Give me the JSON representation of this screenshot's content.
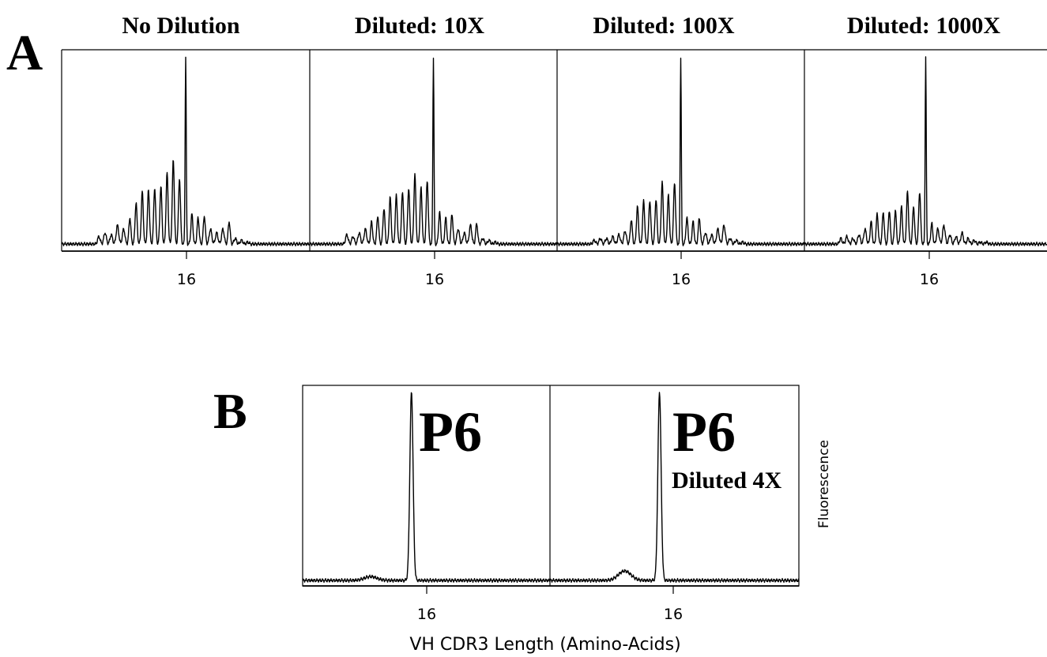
{
  "figure": {
    "panel_a_letter": "A",
    "panel_b_letter": "B",
    "panel_a_titles": [
      "No Dilution",
      "Diluted: 10X",
      "Diluted: 100X",
      "Diluted: 1000X"
    ],
    "panel_b_labels": [
      {
        "main": "P6",
        "sub": ""
      },
      {
        "main": "P6",
        "sub": "Diluted 4X"
      }
    ],
    "tick_label": "16",
    "xlabel": "VH CDR3 Length (Amino-Acids)",
    "ylabel": "Fluorescence"
  },
  "chart_data": [
    {
      "type": "line",
      "title": "No Dilution",
      "xlabel": "",
      "ylabel": "",
      "xlim": [
        6,
        26
      ],
      "ylim": [
        0,
        100
      ],
      "xticks": [
        16
      ],
      "peaks": {
        "x": [
          9,
          9.5,
          10,
          10.5,
          11,
          11.5,
          12,
          12.5,
          13,
          13.5,
          14,
          14.5,
          15,
          15.5,
          16,
          16.5,
          17,
          17.5,
          18,
          18.5,
          19,
          19.5,
          20,
          20.5,
          21
        ],
        "y": [
          4,
          6,
          5,
          10,
          8,
          14,
          22,
          28,
          29,
          30,
          31,
          38,
          45,
          35,
          100,
          16,
          14,
          15,
          8,
          6,
          8,
          12,
          3,
          2,
          1
        ]
      }
    },
    {
      "type": "line",
      "title": "Diluted: 10X",
      "xlabel": "",
      "ylabel": "",
      "xlim": [
        6,
        26
      ],
      "ylim": [
        0,
        100
      ],
      "xticks": [
        16
      ],
      "peaks": {
        "x": [
          9,
          9.5,
          10,
          10.5,
          11,
          11.5,
          12,
          12.5,
          13,
          13.5,
          14,
          14.5,
          15,
          15.5,
          16,
          16.5,
          17,
          17.5,
          18,
          18.5,
          19,
          19.5,
          20,
          20.5,
          21
        ],
        "y": [
          5,
          4,
          6,
          8,
          12,
          15,
          19,
          25,
          26,
          28,
          30,
          37,
          30,
          34,
          100,
          17,
          14,
          16,
          8,
          6,
          10,
          11,
          3,
          2,
          1
        ]
      }
    },
    {
      "type": "line",
      "title": "Diluted: 100X",
      "xlabel": "",
      "ylabel": "",
      "xlim": [
        6,
        26
      ],
      "ylim": [
        0,
        100
      ],
      "xticks": [
        16
      ],
      "peaks": {
        "x": [
          9,
          9.5,
          10,
          10.5,
          11,
          11.5,
          12,
          12.5,
          13,
          13.5,
          14,
          14.5,
          15,
          15.5,
          16,
          16.5,
          17,
          17.5,
          18,
          18.5,
          19,
          19.5,
          20,
          20.5,
          21
        ],
        "y": [
          2,
          3,
          3,
          4,
          5,
          7,
          13,
          20,
          23,
          23,
          24,
          33,
          26,
          33,
          100,
          14,
          12,
          14,
          6,
          5,
          8,
          10,
          3,
          2,
          1
        ]
      }
    },
    {
      "type": "line",
      "title": "Diluted: 1000X",
      "xlabel": "",
      "ylabel": "",
      "xlim": [
        6,
        26
      ],
      "ylim": [
        0,
        100
      ],
      "xticks": [
        16
      ],
      "peaks": {
        "x": [
          9,
          9.5,
          10,
          10.5,
          11,
          11.5,
          12,
          12.5,
          13,
          13.5,
          14,
          14.5,
          15,
          15.5,
          16,
          16.5,
          17,
          17.5,
          18,
          18.5,
          19,
          19.5,
          20,
          20.5,
          21
        ],
        "y": [
          3,
          4,
          3,
          5,
          8,
          12,
          16,
          17,
          18,
          18,
          20,
          28,
          20,
          28,
          100,
          11,
          8,
          10,
          5,
          4,
          6,
          3,
          2,
          1,
          1
        ]
      }
    },
    {
      "type": "line",
      "title": "P6",
      "xlabel": "VH CDR3 Length (Amino-Acids)",
      "ylabel": "Fluorescence",
      "xlim": [
        6,
        26
      ],
      "ylim": [
        0,
        100
      ],
      "xticks": [
        16
      ],
      "peaks": {
        "x": [
          11.5,
          14.8
        ],
        "y": [
          2,
          100
        ]
      }
    },
    {
      "type": "line",
      "title": "P6 Diluted 4X",
      "xlabel": "VH CDR3 Length (Amino-Acids)",
      "ylabel": "Fluorescence",
      "xlim": [
        6,
        26
      ],
      "ylim": [
        0,
        100
      ],
      "xticks": [
        16
      ],
      "peaks": {
        "x": [
          12,
          14.8
        ],
        "y": [
          5,
          100
        ]
      }
    }
  ]
}
